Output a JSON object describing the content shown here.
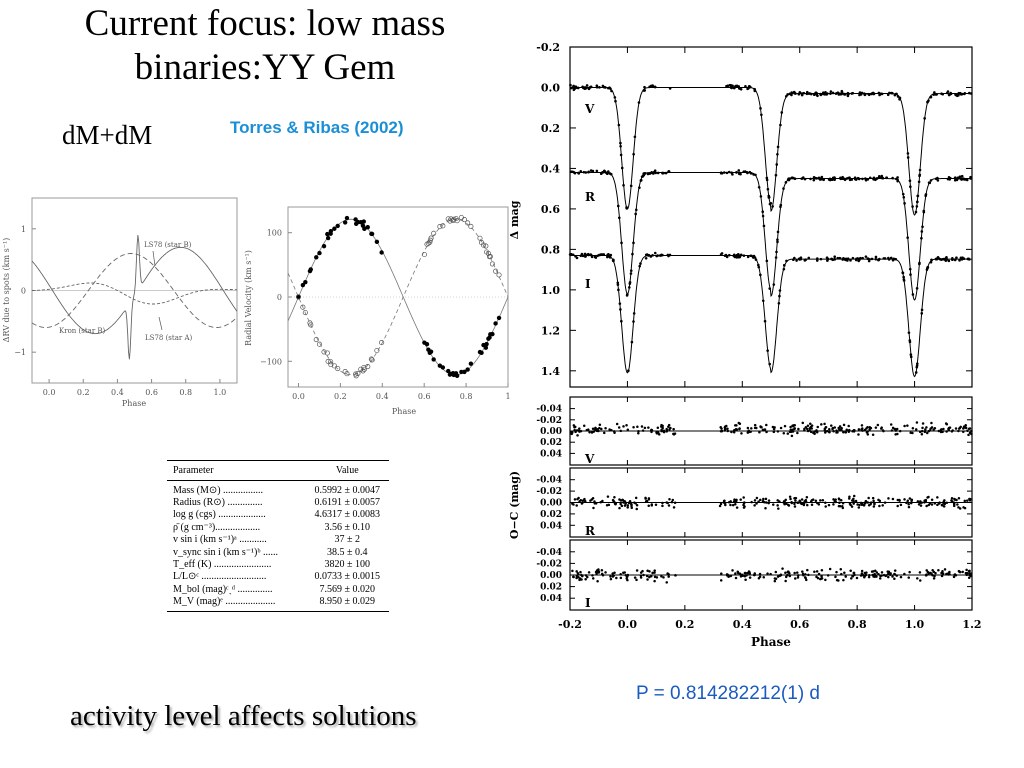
{
  "slide": {
    "title_line1": "Current focus: low mass",
    "title_line2": "binaries:YY Gem",
    "subtitle": "dM+dM",
    "citation": "Torres & Ribas (2002)",
    "period": "P = 0.814282212(1) d",
    "footer": "activity level affects solutions"
  },
  "param_table": {
    "headers": [
      "Parameter",
      "Value"
    ],
    "rows": [
      [
        "Mass (M⊙) ................",
        "0.5992 ± 0.0047"
      ],
      [
        "Radius (R⊙) ..............",
        "0.6191 ± 0.0057"
      ],
      [
        "log g (cgs) ...................",
        "4.6317 ± 0.0083"
      ],
      [
        "ρ̄ (g cm⁻³)..................",
        "3.56 ± 0.10"
      ],
      [
        "v sin i (km s⁻¹)ᵃ ...........",
        "37 ± 2"
      ],
      [
        "v_sync sin i (km s⁻¹)ᵇ ......",
        "38.5 ± 0.4"
      ],
      [
        "T_eff (K) .......................",
        "3820 ± 100"
      ],
      [
        "L/L⊙ᶜ ..........................",
        "0.0733 ± 0.0015"
      ],
      [
        "M_bol (mag)ᶜˎᵈ ..............",
        "7.569 ± 0.020"
      ],
      [
        "M_V (mag)ᵉ ....................",
        "8.950 ± 0.029"
      ]
    ]
  },
  "chart_data": [
    {
      "type": "line",
      "xlabel": "Phase",
      "ylabel": "ΔRV due to spots (km s⁻¹)",
      "xlim": [
        -0.1,
        1.1
      ],
      "ylim": [
        -1.5,
        1.5
      ],
      "xticks": [
        "0.0",
        "0.2",
        "0.4",
        "0.6",
        "0.8",
        "1.0"
      ],
      "yticks": [
        "1",
        "0",
        "−1"
      ],
      "annotations": [
        "LS78 (star B)",
        "Kron (star B)",
        "LS78 (star A)"
      ]
    },
    {
      "type": "scatter",
      "xlabel": "Phase",
      "ylabel": "Radial Velocity (km s⁻¹)",
      "xlim": [
        -0.05,
        1.0
      ],
      "ylim": [
        -140,
        140
      ],
      "xticks": [
        "0.0",
        "0.2",
        "0.4",
        "0.6",
        "0.8",
        "1"
      ],
      "yticks": [
        "100",
        "0",
        "−100"
      ],
      "series": [
        {
          "semi_amplitude": 121,
          "gamma": 0
        },
        {
          "semi_amplitude": 121,
          "gamma": 0
        }
      ]
    },
    {
      "type": "line",
      "xlabel": "",
      "ylabel": "Δ mag",
      "xlim": [
        -0.2,
        1.2
      ],
      "ylim": [
        1.48,
        -0.2
      ],
      "yticks": [
        "-0.2",
        "0.0",
        "0.2",
        "0.4",
        "0.6",
        "0.8",
        "1.0",
        "1.2",
        "1.4"
      ],
      "series": [
        {
          "name": "V",
          "offset": 0.0,
          "primary_depth": 0.6,
          "secondary_depth": 0.58
        },
        {
          "name": "R",
          "offset": 0.42,
          "primary_depth": 0.6,
          "secondary_depth": 0.58
        },
        {
          "name": "I",
          "offset": 0.83,
          "primary_depth": 0.58,
          "secondary_depth": 0.56
        }
      ]
    },
    {
      "type": "scatter",
      "xlabel": "Phase",
      "ylabel": "O−C (mag)",
      "xlim": [
        -0.2,
        1.2
      ],
      "xticks": [
        "-0.2",
        "0.0",
        "0.2",
        "0.4",
        "0.6",
        "0.8",
        "1.0",
        "1.2"
      ],
      "yticks": [
        "-0.04",
        "-0.02",
        "0.00",
        "0.02",
        "0.04"
      ],
      "ylim": [
        0.05,
        -0.05
      ],
      "panels": [
        "V",
        "R",
        "I"
      ]
    }
  ]
}
